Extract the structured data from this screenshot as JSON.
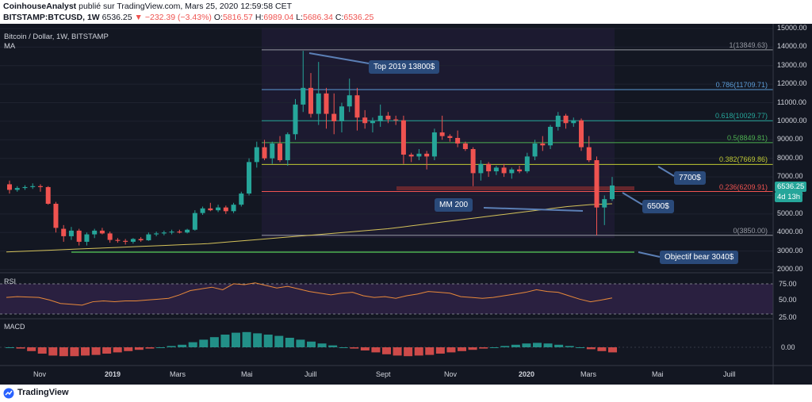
{
  "header": {
    "author": "CoinhouseAnalyst",
    "published": "publié sur TradingView.com, Mars 25, 2020 12:59:58 CET",
    "symbol": "BITSTAMP:BTCUSD, 1W",
    "last": "6536.25",
    "change": "−232.39 (−3.43%)",
    "open_label": "O:",
    "open": "5816.57",
    "high_label": "H:",
    "high": "6989.04",
    "low_label": "L:",
    "low": "5686.34",
    "close_label": "C:",
    "close": "6536.25"
  },
  "legend": {
    "title": "Bitcoin / Dollar, 1W, BITSTAMP",
    "ma": "MA"
  },
  "colors": {
    "up": "#26a69a",
    "down": "#ef5350",
    "ma": "#d4c25a",
    "callout": "#2a4a7a"
  },
  "fib_levels": [
    {
      "label": "1(13849.63)",
      "price": 13849.63,
      "color": "#9598a1"
    },
    {
      "label": "0.786(11709.71)",
      "price": 11709.71,
      "color": "#5b9bd5"
    },
    {
      "label": "0.618(10029.77)",
      "price": 10029.77,
      "color": "#26a69a"
    },
    {
      "label": "0.5(8849.81)",
      "price": 8849.81,
      "color": "#4caf50"
    },
    {
      "label": "0.382(7669.86)",
      "price": 7669.86,
      "color": "#c0ca33"
    },
    {
      "label": "0.236(6209.91)",
      "price": 6209.91,
      "color": "#ef5350"
    },
    {
      "label": "0(3850.00)",
      "price": 3850,
      "color": "#9598a1"
    }
  ],
  "price_axis": [
    "15000.00",
    "14000.00",
    "13000.00",
    "12000.00",
    "11000.00",
    "10000.00",
    "9000.00",
    "8000.00",
    "7000.00",
    "6000.00",
    "5000.00",
    "4000.00",
    "3000.00",
    "2000.00"
  ],
  "price_tag": {
    "value": "6536.25",
    "countdown": "4d 13h"
  },
  "callouts": {
    "top2019": "Top 2019 13800$",
    "mm200": "MM 200",
    "p7700": "7700$",
    "p6500": "6500$",
    "bear": "Objectif bear 3040$"
  },
  "rsi": {
    "label": "RSI",
    "ticks": [
      "75.00",
      "50.00",
      "25.00"
    ]
  },
  "macd": {
    "label": "MACD",
    "tick": "0.00"
  },
  "time_axis": [
    "Nov",
    "2019",
    "Mars",
    "Mai",
    "Juill",
    "Sept",
    "Nov",
    "2020",
    "Mars",
    "Mai",
    "Juill"
  ],
  "footer": {
    "brand": "TradingView"
  },
  "chart_data": {
    "type": "candlestick",
    "title": "Bitcoin / Dollar, 1W, BITSTAMP",
    "y_range": [
      2000,
      15000
    ],
    "candles": [
      [
        6600,
        6800,
        6100,
        6300
      ],
      [
        6300,
        6500,
        6200,
        6400
      ],
      [
        6400,
        6550,
        6300,
        6450
      ],
      [
        6450,
        6650,
        6350,
        6500
      ],
      [
        6500,
        6600,
        6200,
        6450
      ],
      [
        6450,
        6500,
        5500,
        5550
      ],
      [
        5550,
        5650,
        4000,
        4250
      ],
      [
        4200,
        4400,
        3500,
        3800
      ],
      [
        3800,
        4300,
        3600,
        4100
      ],
      [
        4100,
        4200,
        3300,
        3500
      ],
      [
        3500,
        4000,
        3300,
        3900
      ],
      [
        3900,
        4200,
        3700,
        4100
      ],
      [
        4100,
        4250,
        3900,
        3950
      ],
      [
        3950,
        4050,
        3450,
        3600
      ],
      [
        3600,
        3700,
        3450,
        3550
      ],
      [
        3550,
        3650,
        3350,
        3500
      ],
      [
        3500,
        3700,
        3400,
        3650
      ],
      [
        3650,
        3750,
        3500,
        3580
      ],
      [
        3580,
        4000,
        3550,
        3900
      ],
      [
        3900,
        4050,
        3800,
        3950
      ],
      [
        3950,
        4100,
        3850,
        4000
      ],
      [
        4000,
        4150,
        3900,
        4050
      ],
      [
        4050,
        4150,
        3950,
        4000
      ],
      [
        4000,
        4200,
        3950,
        4150
      ],
      [
        4150,
        5200,
        4100,
        5050
      ],
      [
        5050,
        5400,
        4950,
        5300
      ],
      [
        5300,
        5600,
        5150,
        5200
      ],
      [
        5200,
        5500,
        5100,
        5350
      ],
      [
        5350,
        5450,
        5000,
        5150
      ],
      [
        5150,
        5600,
        5050,
        5500
      ],
      [
        5500,
        6200,
        5400,
        6100
      ],
      [
        6100,
        8000,
        6000,
        7800
      ],
      [
        7800,
        8900,
        7500,
        8600
      ],
      [
        8600,
        9000,
        7900,
        8000
      ],
      [
        8000,
        8900,
        7700,
        8800
      ],
      [
        8800,
        9200,
        7800,
        7900
      ],
      [
        7900,
        9400,
        7600,
        9300
      ],
      [
        9300,
        11200,
        9000,
        10900
      ],
      [
        10900,
        13800,
        10500,
        11800
      ],
      [
        11800,
        12600,
        10200,
        10400
      ],
      [
        10400,
        13200,
        9800,
        11500
      ],
      [
        11500,
        11800,
        9600,
        10400
      ],
      [
        10400,
        11500,
        9300,
        10000
      ],
      [
        10000,
        11000,
        9400,
        10800
      ],
      [
        10800,
        12300,
        10500,
        11400
      ],
      [
        11400,
        11800,
        9500,
        10200
      ],
      [
        10200,
        10600,
        9600,
        9900
      ],
      [
        9900,
        10200,
        9400,
        10000
      ],
      [
        10000,
        10900,
        9700,
        10300
      ],
      [
        10300,
        10500,
        9900,
        10100
      ],
      [
        10100,
        10300,
        9800,
        10050
      ],
      [
        10050,
        10300,
        7700,
        8200
      ],
      [
        8200,
        8300,
        7800,
        8100
      ],
      [
        8100,
        8500,
        7900,
        8250
      ],
      [
        8250,
        8400,
        7400,
        8100
      ],
      [
        8100,
        9600,
        7900,
        9400
      ],
      [
        9400,
        10300,
        9000,
        9200
      ],
      [
        9200,
        9300,
        8900,
        9100
      ],
      [
        9100,
        9500,
        8600,
        8800
      ],
      [
        8800,
        8900,
        8400,
        8500
      ],
      [
        8500,
        8600,
        6500,
        7200
      ],
      [
        7200,
        7900,
        6800,
        7700
      ],
      [
        7700,
        7800,
        7000,
        7300
      ],
      [
        7300,
        7600,
        7100,
        7500
      ],
      [
        7500,
        7700,
        7000,
        7200
      ],
      [
        7200,
        7500,
        6900,
        7400
      ],
      [
        7400,
        7600,
        7200,
        7300
      ],
      [
        7300,
        8300,
        7200,
        8100
      ],
      [
        8100,
        9000,
        7900,
        8800
      ],
      [
        8800,
        9200,
        8400,
        8700
      ],
      [
        8700,
        9800,
        8500,
        9700
      ],
      [
        9700,
        10500,
        9500,
        10300
      ],
      [
        10300,
        10400,
        9600,
        9900
      ],
      [
        9900,
        10200,
        9700,
        10050
      ],
      [
        10050,
        10150,
        8400,
        8600
      ],
      [
        8600,
        9200,
        7800,
        7900
      ],
      [
        7900,
        8100,
        3850,
        5350
      ],
      [
        5350,
        6000,
        4400,
        5800
      ],
      [
        5800,
        7000,
        5700,
        6536
      ]
    ],
    "ma200": [
      2950,
      3000,
      3050,
      3100,
      3150,
      3200,
      3250,
      3300,
      3350,
      3400,
      3500,
      3600,
      3700,
      3800,
      3900,
      4000,
      4100,
      4200,
      4350,
      4500,
      4650,
      4800,
      4950,
      5100,
      5250,
      5400,
      5500,
      5550
    ],
    "rsi": [
      46,
      48,
      47,
      46,
      40,
      32,
      30,
      28,
      36,
      38,
      36,
      38,
      38,
      40,
      42,
      44,
      52,
      62,
      66,
      70,
      64,
      78,
      76,
      80,
      74,
      68,
      72,
      66,
      60,
      56,
      52,
      56,
      58,
      50,
      46,
      48,
      44,
      50,
      54,
      60,
      58,
      56,
      48,
      46,
      44,
      46,
      50,
      54,
      58,
      64,
      60,
      58,
      50,
      42,
      36,
      40,
      45
    ],
    "macd_hist": [
      0,
      -20,
      -60,
      -100,
      -130,
      -140,
      -140,
      -130,
      -120,
      -100,
      -80,
      -60,
      -40,
      -20,
      0,
      20,
      40,
      80,
      120,
      160,
      200,
      230,
      240,
      220,
      200,
      180,
      150,
      120,
      90,
      60,
      30,
      0,
      -20,
      -50,
      -80,
      -110,
      -130,
      -140,
      -130,
      -120,
      -100,
      -80,
      -60,
      -40,
      -20,
      0,
      20,
      40,
      60,
      70,
      60,
      40,
      20,
      0,
      -30,
      -60,
      -80
    ]
  }
}
